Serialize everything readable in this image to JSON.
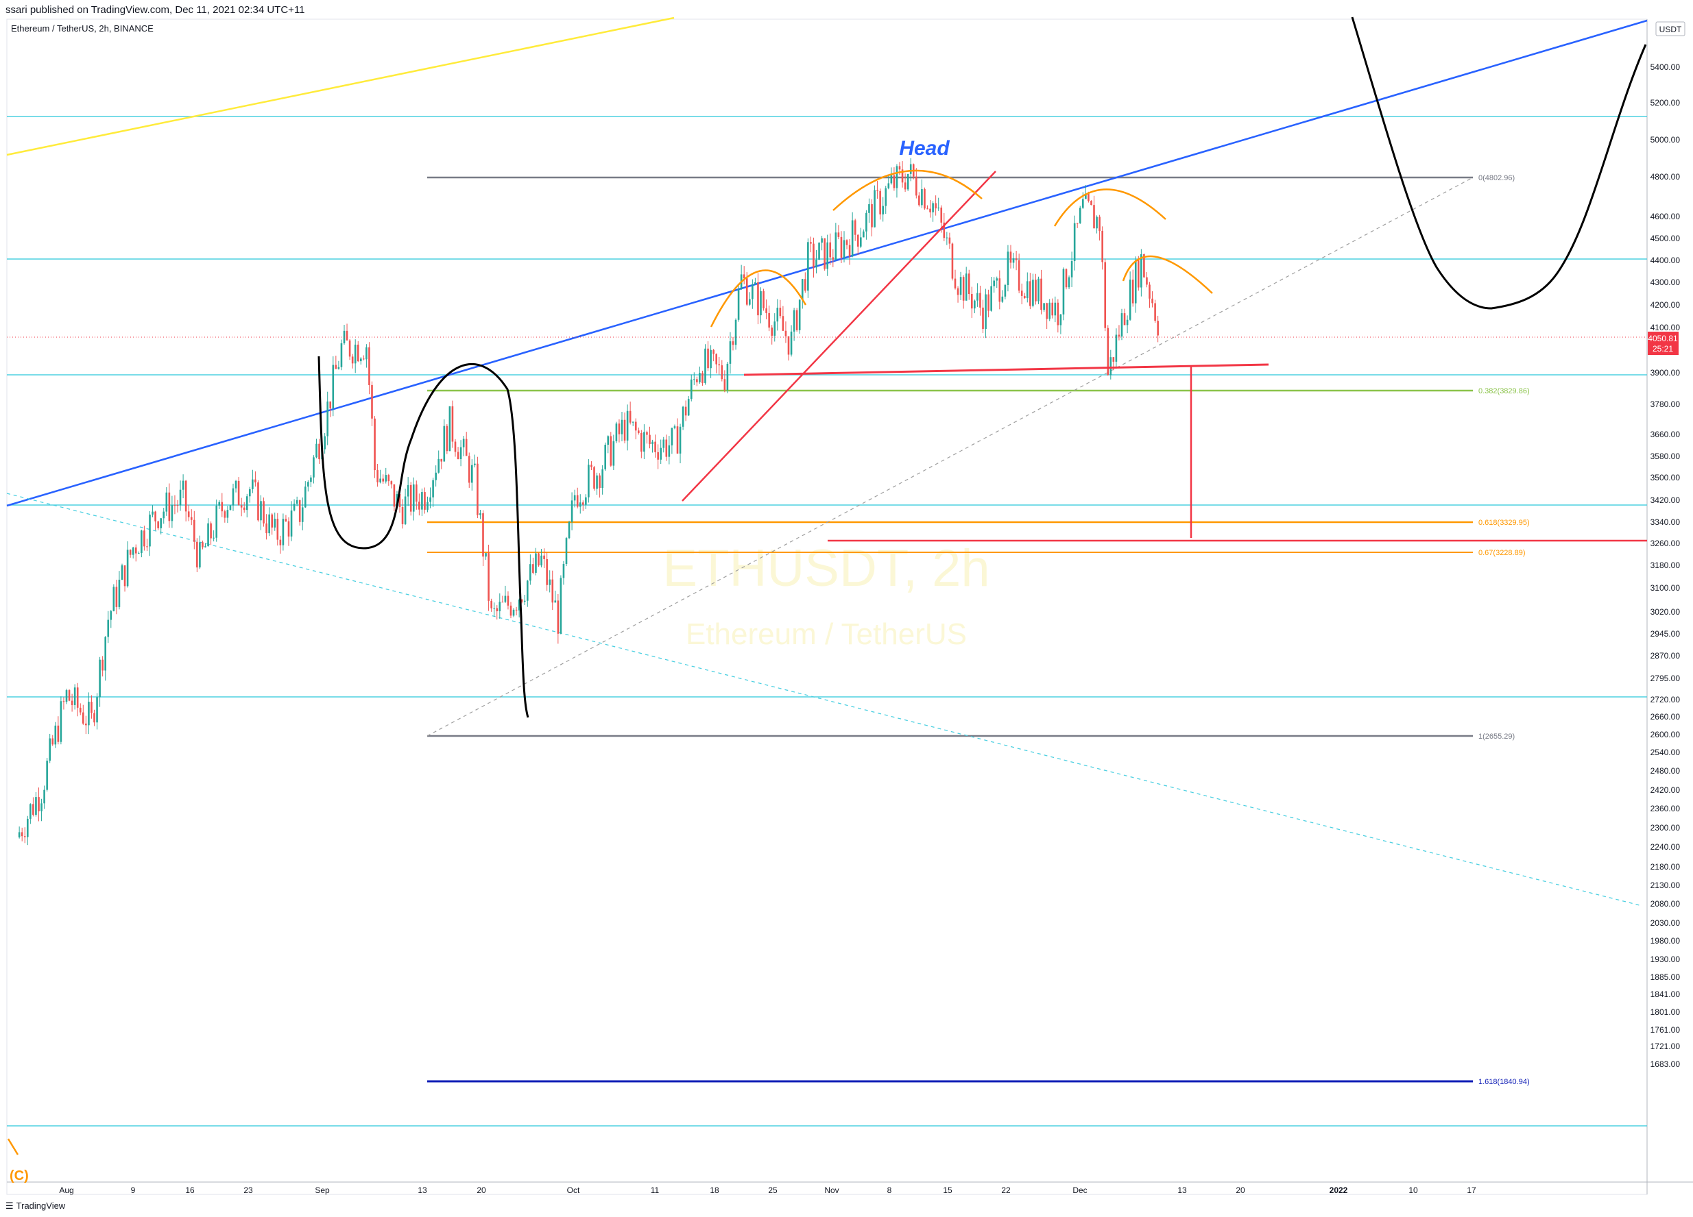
{
  "header": {
    "published": "ssari published on TradingView.com, Dec 11, 2021 02:34 UTC+11",
    "symbol": "Ethereum / TetherUS, 2h, BINANCE"
  },
  "watermark": {
    "line1": "ETHUSDT, 2h",
    "line2": "Ethereum / TetherUS"
  },
  "footer": {
    "brand": "TradingView",
    "icon": "tradingview-logo-icon"
  },
  "chart_data": {
    "type": "line",
    "currency": "USDT",
    "y_axis_ticks": [
      "5400.00",
      "5200.00",
      "5000.00",
      "4800.00",
      "4600.00",
      "4500.00",
      "4400.00",
      "4300.00",
      "4200.00",
      "4100.00",
      "3900.00",
      "3780.00",
      "3660.00",
      "3580.00",
      "3500.00",
      "3420.00",
      "3340.00",
      "3260.00",
      "3180.00",
      "3100.00",
      "3020.00",
      "2945.00",
      "2870.00",
      "2795.00",
      "2720.00",
      "2660.00",
      "2600.00",
      "2540.00",
      "2480.00",
      "2420.00",
      "2360.00",
      "2300.00",
      "2240.00",
      "2180.00",
      "2130.00",
      "2080.00",
      "2030.00",
      "1980.00",
      "1930.00",
      "1885.00",
      "1841.00",
      "1801.00",
      "1761.00",
      "1721.00",
      "1683.00"
    ],
    "x_axis_ticks": [
      "Aug",
      "9",
      "16",
      "23",
      "Sep",
      "13",
      "20",
      "Oct",
      "11",
      "18",
      "25",
      "Nov",
      "8",
      "15",
      "22",
      "Dec",
      "13",
      "20",
      "2022",
      "10",
      "17"
    ],
    "last_price": "4050.81",
    "countdown": "25:21",
    "fib_levels": [
      {
        "label": "0(4802.96)",
        "price": 4802.96,
        "color": "#787b86"
      },
      {
        "label": "0.382(3829.86)",
        "price": 3829.86,
        "color": "#8bc34a"
      },
      {
        "label": "0.618(3329.95)",
        "price": 3329.95,
        "color": "#ff9800"
      },
      {
        "label": "0.67(3228.89)",
        "price": 3228.89,
        "color": "#ff9800"
      },
      {
        "label": "1(2655.29)",
        "price": 2655.29,
        "color": "#787b86"
      },
      {
        "label": "1.618(1840.94)",
        "price": 1840.94,
        "color": "#0d1bb5"
      }
    ],
    "annotations": [
      {
        "text": "Head",
        "color": "#2962ff"
      }
    ],
    "price_series": [
      [
        "Jul 26",
        2200
      ],
      [
        "Jul 29",
        2330
      ],
      [
        "Aug 1",
        2600
      ],
      [
        "Aug 4",
        2520
      ],
      [
        "Aug 6",
        2850
      ],
      [
        "Aug 9",
        3100
      ],
      [
        "Aug 12",
        3230
      ],
      [
        "Aug 15",
        3280
      ],
      [
        "Aug 17",
        3050
      ],
      [
        "Aug 20",
        3270
      ],
      [
        "Aug 23",
        3320
      ],
      [
        "Aug 26",
        3140
      ],
      [
        "Aug 29",
        3230
      ],
      [
        "Sep 1",
        3600
      ],
      [
        "Sep 3",
        3920
      ],
      [
        "Sep 6",
        3940
      ],
      [
        "Sep 7",
        3400
      ],
      [
        "Sep 10",
        3250
      ],
      [
        "Sep 13",
        3300
      ],
      [
        "Sep 16",
        3580
      ],
      [
        "Sep 19",
        3350
      ],
      [
        "Sep 21",
        2850
      ],
      [
        "Sep 24",
        2920
      ],
      [
        "Sep 27",
        3050
      ],
      [
        "Sep 29",
        2850
      ],
      [
        "Oct 1",
        3300
      ],
      [
        "Oct 4",
        3400
      ],
      [
        "Oct 7",
        3580
      ],
      [
        "Oct 10",
        3500
      ],
      [
        "Oct 13",
        3500
      ],
      [
        "Oct 16",
        3850
      ],
      [
        "Oct 19",
        3800
      ],
      [
        "Oct 21",
        4250
      ],
      [
        "Oct 24",
        4100
      ],
      [
        "Oct 27",
        3950
      ],
      [
        "Oct 29",
        4350
      ],
      [
        "Nov 1",
        4400
      ],
      [
        "Nov 4",
        4500
      ],
      [
        "Nov 8",
        4750
      ],
      [
        "Nov 10",
        4820
      ],
      [
        "Nov 13",
        4650
      ],
      [
        "Nov 16",
        4250
      ],
      [
        "Nov 19",
        4100
      ],
      [
        "Nov 22",
        4300
      ],
      [
        "Nov 25",
        4200
      ],
      [
        "Nov 28",
        4100
      ],
      [
        "Dec 1",
        4620
      ],
      [
        "Dec 3",
        4550
      ],
      [
        "Dec 4",
        3800
      ],
      [
        "Dec 6",
        4100
      ],
      [
        "Dec 8",
        4350
      ],
      [
        "Dec 10",
        4050
      ]
    ]
  }
}
